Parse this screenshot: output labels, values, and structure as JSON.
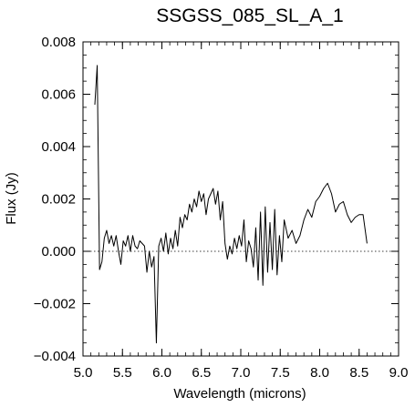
{
  "chart_data": {
    "type": "line",
    "title": "SSGSS_085_SL_A_1",
    "xlabel": "Wavelength (microns)",
    "ylabel": "Flux (Jy)",
    "xlim": [
      5.0,
      9.0
    ],
    "ylim": [
      -0.004,
      0.008
    ],
    "x_ticks": [
      5.0,
      5.5,
      6.0,
      6.5,
      7.0,
      7.5,
      8.0,
      8.5,
      9.0
    ],
    "x_tick_labels": [
      "5.0",
      "5.5",
      "6.0",
      "6.5",
      "7.0",
      "7.5",
      "8.0",
      "8.5",
      "9.0"
    ],
    "y_ticks": [
      -0.004,
      -0.002,
      0.0,
      0.002,
      0.004,
      0.006,
      0.008
    ],
    "y_tick_labels": [
      "−0.004",
      "−0.002",
      "0.000",
      "0.002",
      "0.004",
      "0.006",
      "0.008"
    ],
    "zero_line": {
      "y": 0.0,
      "style": "dotted"
    },
    "grid": false,
    "series": [
      {
        "color": "#000000",
        "x": [
          5.15,
          5.18,
          5.21,
          5.24,
          5.27,
          5.3,
          5.33,
          5.36,
          5.39,
          5.42,
          5.45,
          5.48,
          5.51,
          5.54,
          5.57,
          5.6,
          5.63,
          5.66,
          5.69,
          5.72,
          5.75,
          5.78,
          5.81,
          5.84,
          5.87,
          5.9,
          5.93,
          5.96,
          5.99,
          6.02,
          6.05,
          6.08,
          6.11,
          6.14,
          6.17,
          6.2,
          6.23,
          6.26,
          6.29,
          6.32,
          6.35,
          6.38,
          6.41,
          6.44,
          6.47,
          6.5,
          6.53,
          6.56,
          6.59,
          6.62,
          6.65,
          6.68,
          6.71,
          6.74,
          6.77,
          6.8,
          6.83,
          6.86,
          6.89,
          6.92,
          6.95,
          6.98,
          7.01,
          7.04,
          7.07,
          7.1,
          7.13,
          7.16,
          7.19,
          7.22,
          7.25,
          7.28,
          7.31,
          7.34,
          7.37,
          7.4,
          7.43,
          7.46,
          7.49,
          7.52,
          7.55,
          7.6,
          7.65,
          7.7,
          7.75,
          7.8,
          7.85,
          7.9,
          7.95,
          8.0,
          8.05,
          8.1,
          8.15,
          8.2,
          8.25,
          8.3,
          8.35,
          8.4,
          8.45,
          8.5,
          8.55,
          8.6
        ],
        "y": [
          0.0056,
          0.0071,
          -0.0007,
          -0.0004,
          0.0005,
          0.0008,
          0.0003,
          0.0006,
          0.0002,
          0.0006,
          0.0,
          -0.0005,
          0.0004,
          0.0002,
          0.0006,
          0.0,
          0.0006,
          0.0002,
          0.0001,
          0.0004,
          0.0003,
          0.0002,
          -0.0008,
          0.0,
          -0.0006,
          -0.0002,
          -0.0035,
          0.0002,
          0.0005,
          0.0,
          0.0007,
          -0.0001,
          0.0005,
          0.0001,
          0.0008,
          0.0002,
          0.0013,
          0.0009,
          0.0014,
          0.0012,
          0.0018,
          0.0015,
          0.002,
          0.0017,
          0.0023,
          0.0019,
          0.0022,
          0.0014,
          0.002,
          0.0022,
          0.0024,
          0.0018,
          0.0023,
          0.0012,
          0.0019,
          0.0003,
          -0.0003,
          0.0002,
          -0.0001,
          0.0005,
          0.0001,
          0.0006,
          0.0002,
          0.0012,
          -0.0004,
          0.0004,
          0.0001,
          -0.0006,
          0.0009,
          -0.0011,
          0.0015,
          -0.0013,
          0.0017,
          -0.0008,
          0.0011,
          -0.0007,
          0.0016,
          -0.0009,
          0.0006,
          -0.0004,
          0.0012,
          0.0005,
          0.0008,
          0.0003,
          0.0006,
          0.0012,
          0.0016,
          0.0013,
          0.0019,
          0.0021,
          0.0024,
          0.0026,
          0.0022,
          0.0015,
          0.0018,
          0.0019,
          0.0014,
          0.0011,
          0.0013,
          0.0014,
          0.0014,
          0.0003
        ]
      }
    ]
  }
}
